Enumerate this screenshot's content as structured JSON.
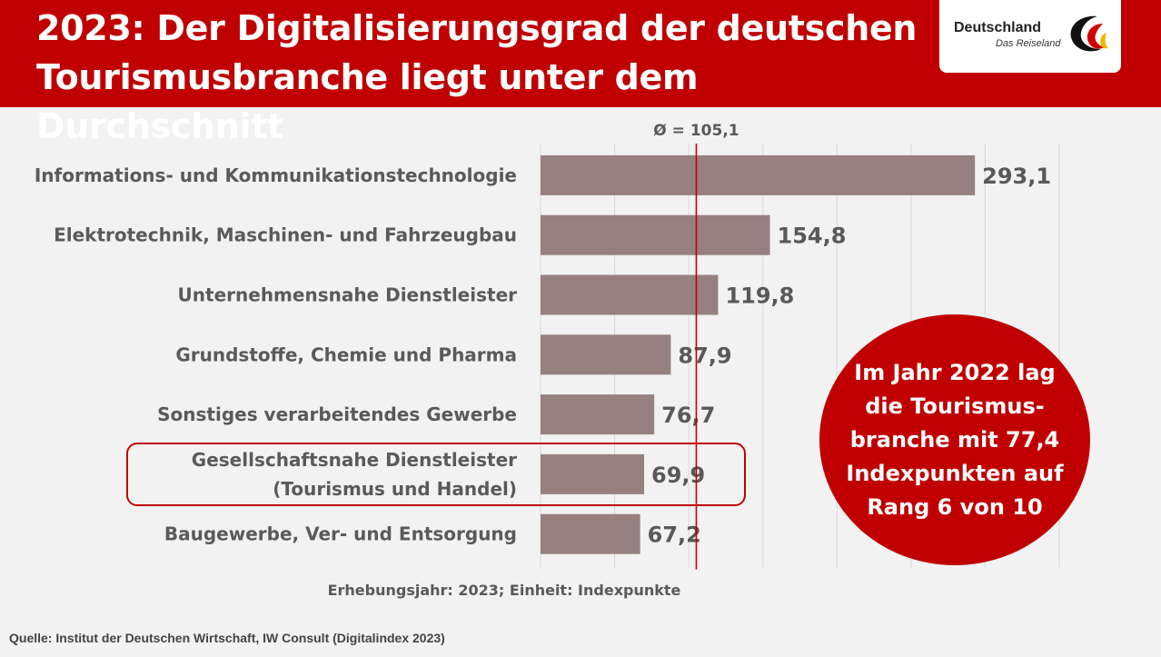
{
  "header": {
    "title": "2023: Der Digitalisierungsgrad der deutschen\nTourismusbranche liegt unter dem Durchschnitt",
    "background_color": "#c00000"
  },
  "logo": {
    "name": "Deutschland",
    "tagline": "Das Reiseland"
  },
  "chart_data": {
    "type": "bar",
    "orientation": "horizontal",
    "categories": [
      "Informations- und Kommunikationstechnologie",
      "Elektrotechnik, Maschinen- und Fahrzeugbau",
      "Unternehmensnahe Dienstleister",
      "Grundstoffe, Chemie und Pharma",
      "Sonstiges verarbeitendes Gewerbe",
      "Gesellschaftsnahe Dienstleister\n(Tourismus und Handel)",
      "Baugewerbe, Ver- und Entsorgung"
    ],
    "values": [
      293.1,
      154.8,
      119.8,
      87.9,
      76.7,
      69.9,
      67.2
    ],
    "value_labels": [
      "293,1",
      "154,8",
      "119,8",
      "87,9",
      "76,7",
      "69,9",
      "67,2"
    ],
    "average": 105.1,
    "average_label": "Ø = 105,1",
    "xlim": [
      0,
      350
    ],
    "gridlines": true,
    "bar_color": "#978080",
    "average_line_color": "#c00000",
    "highlighted_category_index": 5
  },
  "callout": {
    "text": "Im Jahr 2022 lag\ndie Tourismus-\nbranche mit 77,4\nIndexpunkten auf\nRang 6 von 10",
    "color": "#c00000"
  },
  "footnote": "Erhebungsjahr: 2023; Einheit: Indexpunkte",
  "source": "Quelle: Institut der Deutschen Wirtschaft, IW Consult (Digitalindex 2023)"
}
